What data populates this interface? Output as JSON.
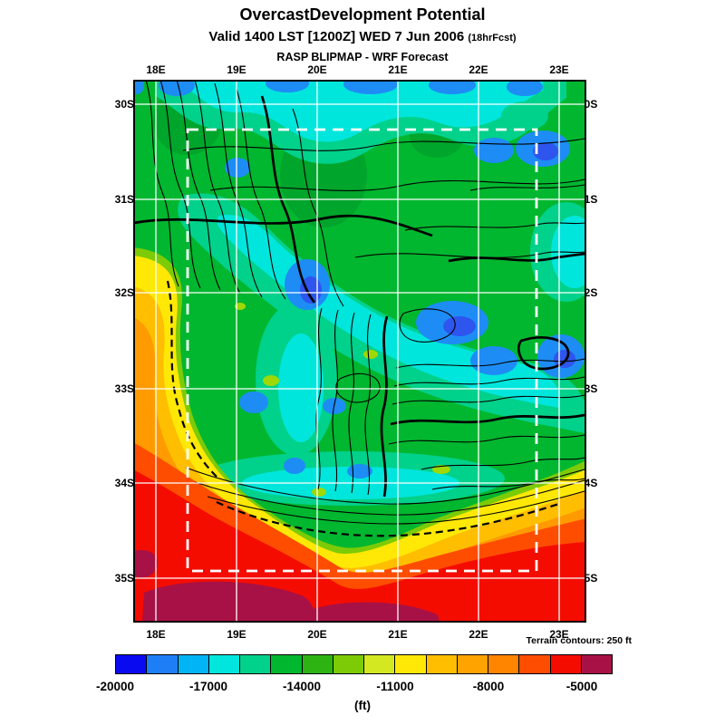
{
  "header": {
    "title": "OvercastDevelopment Potential",
    "valid": "Valid 1400 LST [1200Z] WED 7 Jun 2006",
    "fcst_note": "(18hrFcst)",
    "model": "RASP BLIPMAP - WRF Forecast"
  },
  "map": {
    "lon_ticks": [
      "18E",
      "19E",
      "20E",
      "21E",
      "22E",
      "23E"
    ],
    "lat_ticks": [
      "30S",
      "31S",
      "32S",
      "33S",
      "34S",
      "35S"
    ],
    "terrain_note": "Terrain contours: 250 ft"
  },
  "colorbar": {
    "unit": "(ft)",
    "ticks": [
      "-20000",
      "-17000",
      "-14000",
      "-11000",
      "-8000",
      "-5000"
    ],
    "colors": [
      "#0A0AF0",
      "#1E7EF5",
      "#00B4F5",
      "#00E6DC",
      "#00D18B",
      "#00B72F",
      "#2DB413",
      "#7CCB06",
      "#D3E821",
      "#FFE805",
      "#FFBE00",
      "#FFA300",
      "#FF8400",
      "#FF4D00",
      "#F50C00",
      "#A81145"
    ]
  }
}
